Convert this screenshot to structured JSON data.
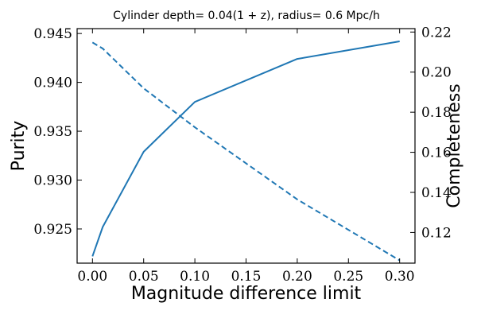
{
  "chart_data": {
    "type": "line",
    "title": "Cylinder depth= 0.04(1 + z), radius= 0.6 Mpc/h",
    "xlabel": "Magnitude difference limit",
    "ylabel_left": "Purity",
    "ylabel_right": "Completeness",
    "xlim": [
      -0.015,
      0.315
    ],
    "ylim_left": [
      0.9215,
      0.9455
    ],
    "ylim_right": [
      0.1047,
      0.2217
    ],
    "x_ticks": [
      0.0,
      0.05,
      0.1,
      0.15,
      0.2,
      0.25,
      0.3
    ],
    "x_tick_labels": [
      "0.00",
      "0.05",
      "0.10",
      "0.15",
      "0.20",
      "0.25",
      "0.30"
    ],
    "y_left_ticks": [
      0.925,
      0.93,
      0.935,
      0.94,
      0.945
    ],
    "y_left_tick_labels": [
      "0.925",
      "0.930",
      "0.935",
      "0.940",
      "0.945"
    ],
    "y_right_ticks": [
      0.12,
      0.14,
      0.16,
      0.18,
      0.2,
      0.22
    ],
    "y_right_tick_labels": [
      "0.12",
      "0.14",
      "0.16",
      "0.18",
      "0.20",
      "0.22"
    ],
    "color": "#1f77b4",
    "series": [
      {
        "name": "Purity",
        "axis": "left",
        "style": "solid",
        "x": [
          0.0,
          0.01,
          0.05,
          0.1,
          0.2,
          0.3
        ],
        "y": [
          0.9222,
          0.9252,
          0.9329,
          0.938,
          0.9424,
          0.9442
        ]
      },
      {
        "name": "Completeness",
        "axis": "right",
        "style": "dashed",
        "x": [
          0.0,
          0.01,
          0.05,
          0.1,
          0.2,
          0.3
        ],
        "y": [
          0.2148,
          0.2118,
          0.1919,
          0.1725,
          0.1365,
          0.1061
        ]
      }
    ]
  }
}
